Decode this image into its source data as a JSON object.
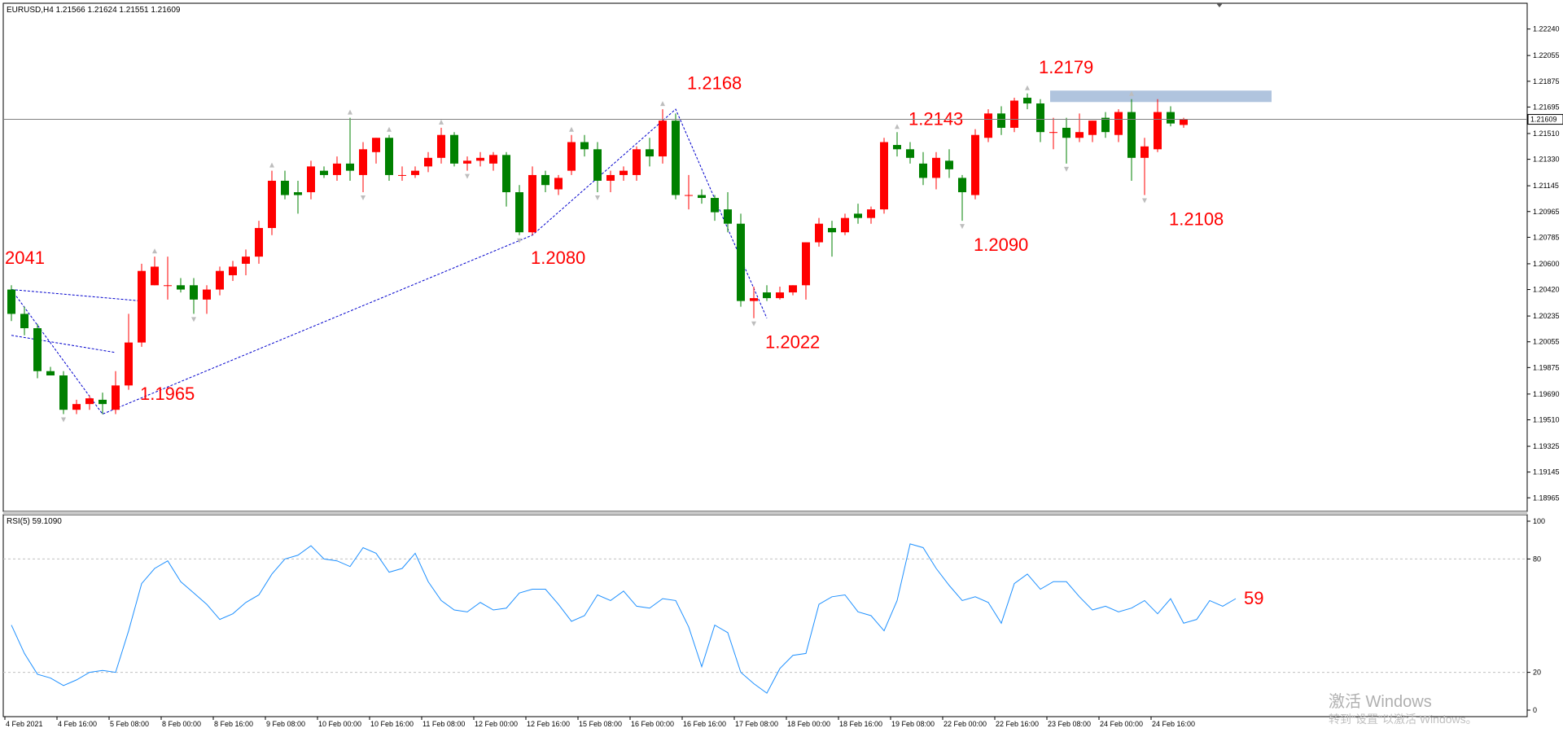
{
  "header": {
    "symbol_info": "EURUSD,H4  1.21566 1.21624 1.21551 1.21609"
  },
  "rsi_panel": {
    "label": "RSI(5) 59.1090",
    "current_label": "59"
  },
  "watermark": {
    "line1": "激活 Windows",
    "line2": "转到\"设置\"以激活 Windows。"
  },
  "colors": {
    "bull": "#ff0000",
    "bear": "#008000",
    "rsi_line": "#1e90ff",
    "annotation": "#ff0000",
    "zigzag": "#0000cd",
    "resistance_zone": "#b0c4de"
  },
  "chart_data": [
    {
      "type": "candlestick",
      "title": "EURUSD,H4",
      "ohlc_header": "1.21566 1.21624 1.21551 1.21609",
      "current_price": 1.21609,
      "current_price_label": "1.21609",
      "ylim": [
        1.1887,
        1.2242
      ],
      "y_ticks": [
        "1.22240",
        "1.22055",
        "1.21875",
        "1.21695",
        "1.21510",
        "1.21330",
        "1.21145",
        "1.20965",
        "1.20785",
        "1.20600",
        "1.20420",
        "1.20235",
        "1.20055",
        "1.19875",
        "1.19690",
        "1.19510",
        "1.19325",
        "1.19145",
        "1.18965"
      ],
      "x_ticks": [
        "4 Feb 2021",
        "4 Feb 16:00",
        "5 Feb 08:00",
        "8 Feb 00:00",
        "8 Feb 16:00",
        "9 Feb 08:00",
        "10 Feb 00:00",
        "10 Feb 16:00",
        "11 Feb 08:00",
        "12 Feb 00:00",
        "12 Feb 16:00",
        "15 Feb 08:00",
        "16 Feb 00:00",
        "16 Feb 16:00",
        "17 Feb 08:00",
        "18 Feb 00:00",
        "18 Feb 16:00",
        "19 Feb 08:00",
        "22 Feb 00:00",
        "22 Feb 16:00",
        "23 Feb 08:00",
        "24 Feb 00:00",
        "24 Feb 16:00"
      ],
      "candles": [
        [
          1.2042,
          1.2045,
          1.202,
          1.2025
        ],
        [
          1.2025,
          1.203,
          1.201,
          1.2015
        ],
        [
          1.2015,
          1.2018,
          1.198,
          1.1985
        ],
        [
          1.1985,
          1.1988,
          1.1982,
          1.1982
        ],
        [
          1.1982,
          1.1985,
          1.1955,
          1.1958
        ],
        [
          1.1958,
          1.1965,
          1.1955,
          1.1962
        ],
        [
          1.1962,
          1.1968,
          1.1958,
          1.1966
        ],
        [
          1.1965,
          1.197,
          1.1955,
          1.1962
        ],
        [
          1.1958,
          1.1985,
          1.1955,
          1.1975
        ],
        [
          1.1975,
          1.2025,
          1.1972,
          1.2005
        ],
        [
          1.2005,
          1.206,
          1.2002,
          1.2055
        ],
        [
          1.2045,
          1.2065,
          1.2045,
          1.2058
        ],
        [
          1.2045,
          1.2065,
          1.2035,
          1.2045
        ],
        [
          1.2045,
          1.205,
          1.204,
          1.2042
        ],
        [
          1.2045,
          1.205,
          1.2025,
          1.2035
        ],
        [
          1.2035,
          1.2045,
          1.2025,
          1.2042
        ],
        [
          1.2042,
          1.2058,
          1.2038,
          1.2055
        ],
        [
          1.2052,
          1.2062,
          1.2048,
          1.2058
        ],
        [
          1.206,
          1.207,
          1.2052,
          1.2065
        ],
        [
          1.2065,
          1.209,
          1.206,
          1.2085
        ],
        [
          1.2085,
          1.2125,
          1.208,
          1.2118
        ],
        [
          1.2118,
          1.2125,
          1.2105,
          1.2108
        ],
        [
          1.211,
          1.2118,
          1.2095,
          1.2108
        ],
        [
          1.211,
          1.2132,
          1.2105,
          1.2128
        ],
        [
          1.2125,
          1.2128,
          1.212,
          1.2122
        ],
        [
          1.2122,
          1.2135,
          1.2118,
          1.213
        ],
        [
          1.213,
          1.2162,
          1.2118,
          1.2125
        ],
        [
          1.2122,
          1.2145,
          1.211,
          1.214
        ],
        [
          1.2138,
          1.2148,
          1.213,
          1.2148
        ],
        [
          1.2148,
          1.215,
          1.2118,
          1.2122
        ],
        [
          1.2122,
          1.2128,
          1.2118,
          1.2122
        ],
        [
          1.2122,
          1.2128,
          1.212,
          1.2125
        ],
        [
          1.2128,
          1.2138,
          1.2124,
          1.2134
        ],
        [
          1.2134,
          1.2155,
          1.213,
          1.215
        ],
        [
          1.215,
          1.2152,
          1.2128,
          1.213
        ],
        [
          1.213,
          1.2135,
          1.2125,
          1.2132
        ],
        [
          1.2132,
          1.2138,
          1.2128,
          1.2134
        ],
        [
          1.213,
          1.2138,
          1.2125,
          1.2136
        ],
        [
          1.2136,
          1.2138,
          1.21,
          1.211
        ],
        [
          1.211,
          1.2115,
          1.208,
          1.2082
        ],
        [
          1.2082,
          1.2128,
          1.208,
          1.2122
        ],
        [
          1.2122,
          1.2125,
          1.211,
          1.2115
        ],
        [
          1.2112,
          1.2122,
          1.2108,
          1.212
        ],
        [
          1.2125,
          1.215,
          1.2122,
          1.2145
        ],
        [
          1.2145,
          1.215,
          1.2135,
          1.214
        ],
        [
          1.214,
          1.2145,
          1.211,
          1.2118
        ],
        [
          1.2118,
          1.2125,
          1.211,
          1.2122
        ],
        [
          1.2122,
          1.2128,
          1.2118,
          1.2125
        ],
        [
          1.2122,
          1.2142,
          1.2118,
          1.214
        ],
        [
          1.214,
          1.2148,
          1.2128,
          1.2135
        ],
        [
          1.2135,
          1.2168,
          1.213,
          1.216
        ],
        [
          1.216,
          1.2165,
          1.2105,
          1.2108
        ],
        [
          1.2108,
          1.2122,
          1.2098,
          1.2108
        ],
        [
          1.2108,
          1.2112,
          1.2102,
          1.2106
        ],
        [
          1.2106,
          1.2108,
          1.209,
          1.2096
        ],
        [
          1.2098,
          1.211,
          1.2082,
          1.2088
        ],
        [
          1.2088,
          1.2095,
          1.203,
          1.2034
        ],
        [
          1.2034,
          1.2044,
          1.2022,
          1.2036
        ],
        [
          1.204,
          1.2045,
          1.2034,
          1.2036
        ],
        [
          1.2036,
          1.2044,
          1.2035,
          1.204
        ],
        [
          1.204,
          1.2045,
          1.2038,
          1.2045
        ],
        [
          1.2045,
          1.2075,
          1.2035,
          1.2075
        ],
        [
          1.2075,
          1.2092,
          1.2072,
          1.2088
        ],
        [
          1.2085,
          1.209,
          1.2065,
          1.2082
        ],
        [
          1.2082,
          1.2095,
          1.208,
          1.2092
        ],
        [
          1.2095,
          1.2102,
          1.2088,
          1.2092
        ],
        [
          1.2092,
          1.21,
          1.2088,
          1.2098
        ],
        [
          1.2098,
          1.2148,
          1.2095,
          1.2145
        ],
        [
          1.2143,
          1.2152,
          1.2135,
          1.214
        ],
        [
          1.214,
          1.2145,
          1.213,
          1.2134
        ],
        [
          1.213,
          1.2138,
          1.2115,
          1.212
        ],
        [
          1.212,
          1.2138,
          1.2112,
          1.2134
        ],
        [
          1.2132,
          1.214,
          1.212,
          1.2126
        ],
        [
          1.212,
          1.2122,
          1.209,
          1.211
        ],
        [
          1.2108,
          1.2154,
          1.2105,
          1.215
        ],
        [
          1.2148,
          1.2168,
          1.2145,
          1.2165
        ],
        [
          1.2165,
          1.217,
          1.215,
          1.2155
        ],
        [
          1.2155,
          1.2176,
          1.2152,
          1.2174
        ],
        [
          1.2176,
          1.2179,
          1.2168,
          1.2172
        ],
        [
          1.2172,
          1.2175,
          1.2145,
          1.2152
        ],
        [
          1.2152,
          1.2162,
          1.214,
          1.2152
        ],
        [
          1.2155,
          1.2162,
          1.213,
          1.2148
        ],
        [
          1.2148,
          1.2165,
          1.2145,
          1.2152
        ],
        [
          1.215,
          1.216,
          1.2145,
          1.216
        ],
        [
          1.2162,
          1.2166,
          1.2148,
          1.2152
        ],
        [
          1.215,
          1.2168,
          1.2145,
          1.2166
        ],
        [
          1.2166,
          1.2175,
          1.2118,
          1.2134
        ],
        [
          1.2134,
          1.2148,
          1.2108,
          1.2142
        ],
        [
          1.214,
          1.2175,
          1.2138,
          1.2166
        ],
        [
          1.2166,
          1.217,
          1.2156,
          1.2158
        ],
        [
          1.2157,
          1.2162,
          1.2155,
          1.2161
        ]
      ],
      "annotations": [
        {
          "text": "2041",
          "index": 0,
          "price": 1.206
        },
        {
          "text": "1.1965",
          "index": 10,
          "price": 1.1965
        },
        {
          "text": "1.2080",
          "index": 40,
          "price": 1.206
        },
        {
          "text": "1.2168",
          "index": 52,
          "price": 1.2182
        },
        {
          "text": "1.2022",
          "index": 58,
          "price": 1.2001
        },
        {
          "text": "1.2143",
          "index": 69,
          "price": 1.2157
        },
        {
          "text": "1.2090",
          "index": 74,
          "price": 1.2069
        },
        {
          "text": "1.2179",
          "index": 79,
          "price": 1.2193
        },
        {
          "text": "1.2108",
          "index": 89,
          "price": 1.2087
        }
      ],
      "zigzag_points": [
        [
          0,
          1.2042
        ],
        [
          7,
          1.1955
        ],
        [
          40,
          1.208
        ],
        [
          51,
          1.2168
        ],
        [
          58,
          1.2022
        ]
      ],
      "channel_lines": [
        [
          [
            0,
            1.2042
          ],
          [
            10,
            1.2034
          ]
        ],
        [
          [
            0,
            1.201
          ],
          [
            8,
            1.1998
          ]
        ]
      ],
      "resistance_zone": {
        "from_index": 80,
        "to_index": 97,
        "high": 1.2181,
        "low": 1.2173
      }
    },
    {
      "type": "line",
      "title": "RSI(5) 59.1090",
      "ylim": [
        0,
        100
      ],
      "y_ticks": [
        100,
        80,
        20,
        0
      ],
      "levels": [
        80,
        20
      ],
      "values": [
        45,
        30,
        19,
        17,
        13,
        16,
        20,
        21,
        20,
        42,
        67,
        75,
        79,
        68,
        62,
        56,
        48,
        51,
        57,
        61,
        72,
        80,
        82,
        87,
        80,
        79,
        76,
        86,
        83,
        73,
        75,
        83,
        68,
        58,
        53,
        52,
        57,
        53,
        54,
        62,
        64,
        64,
        56,
        47,
        50,
        61,
        58,
        63,
        55,
        54,
        59,
        58,
        44,
        23,
        45,
        41,
        20,
        14,
        9,
        22,
        29,
        30,
        56,
        60,
        61,
        52,
        50,
        42,
        58,
        88,
        86,
        75,
        66,
        58,
        60,
        57,
        46,
        67,
        72,
        64,
        68,
        68,
        60,
        53,
        55,
        52,
        54,
        58,
        51,
        59,
        46,
        48,
        58,
        55,
        59
      ]
    }
  ]
}
